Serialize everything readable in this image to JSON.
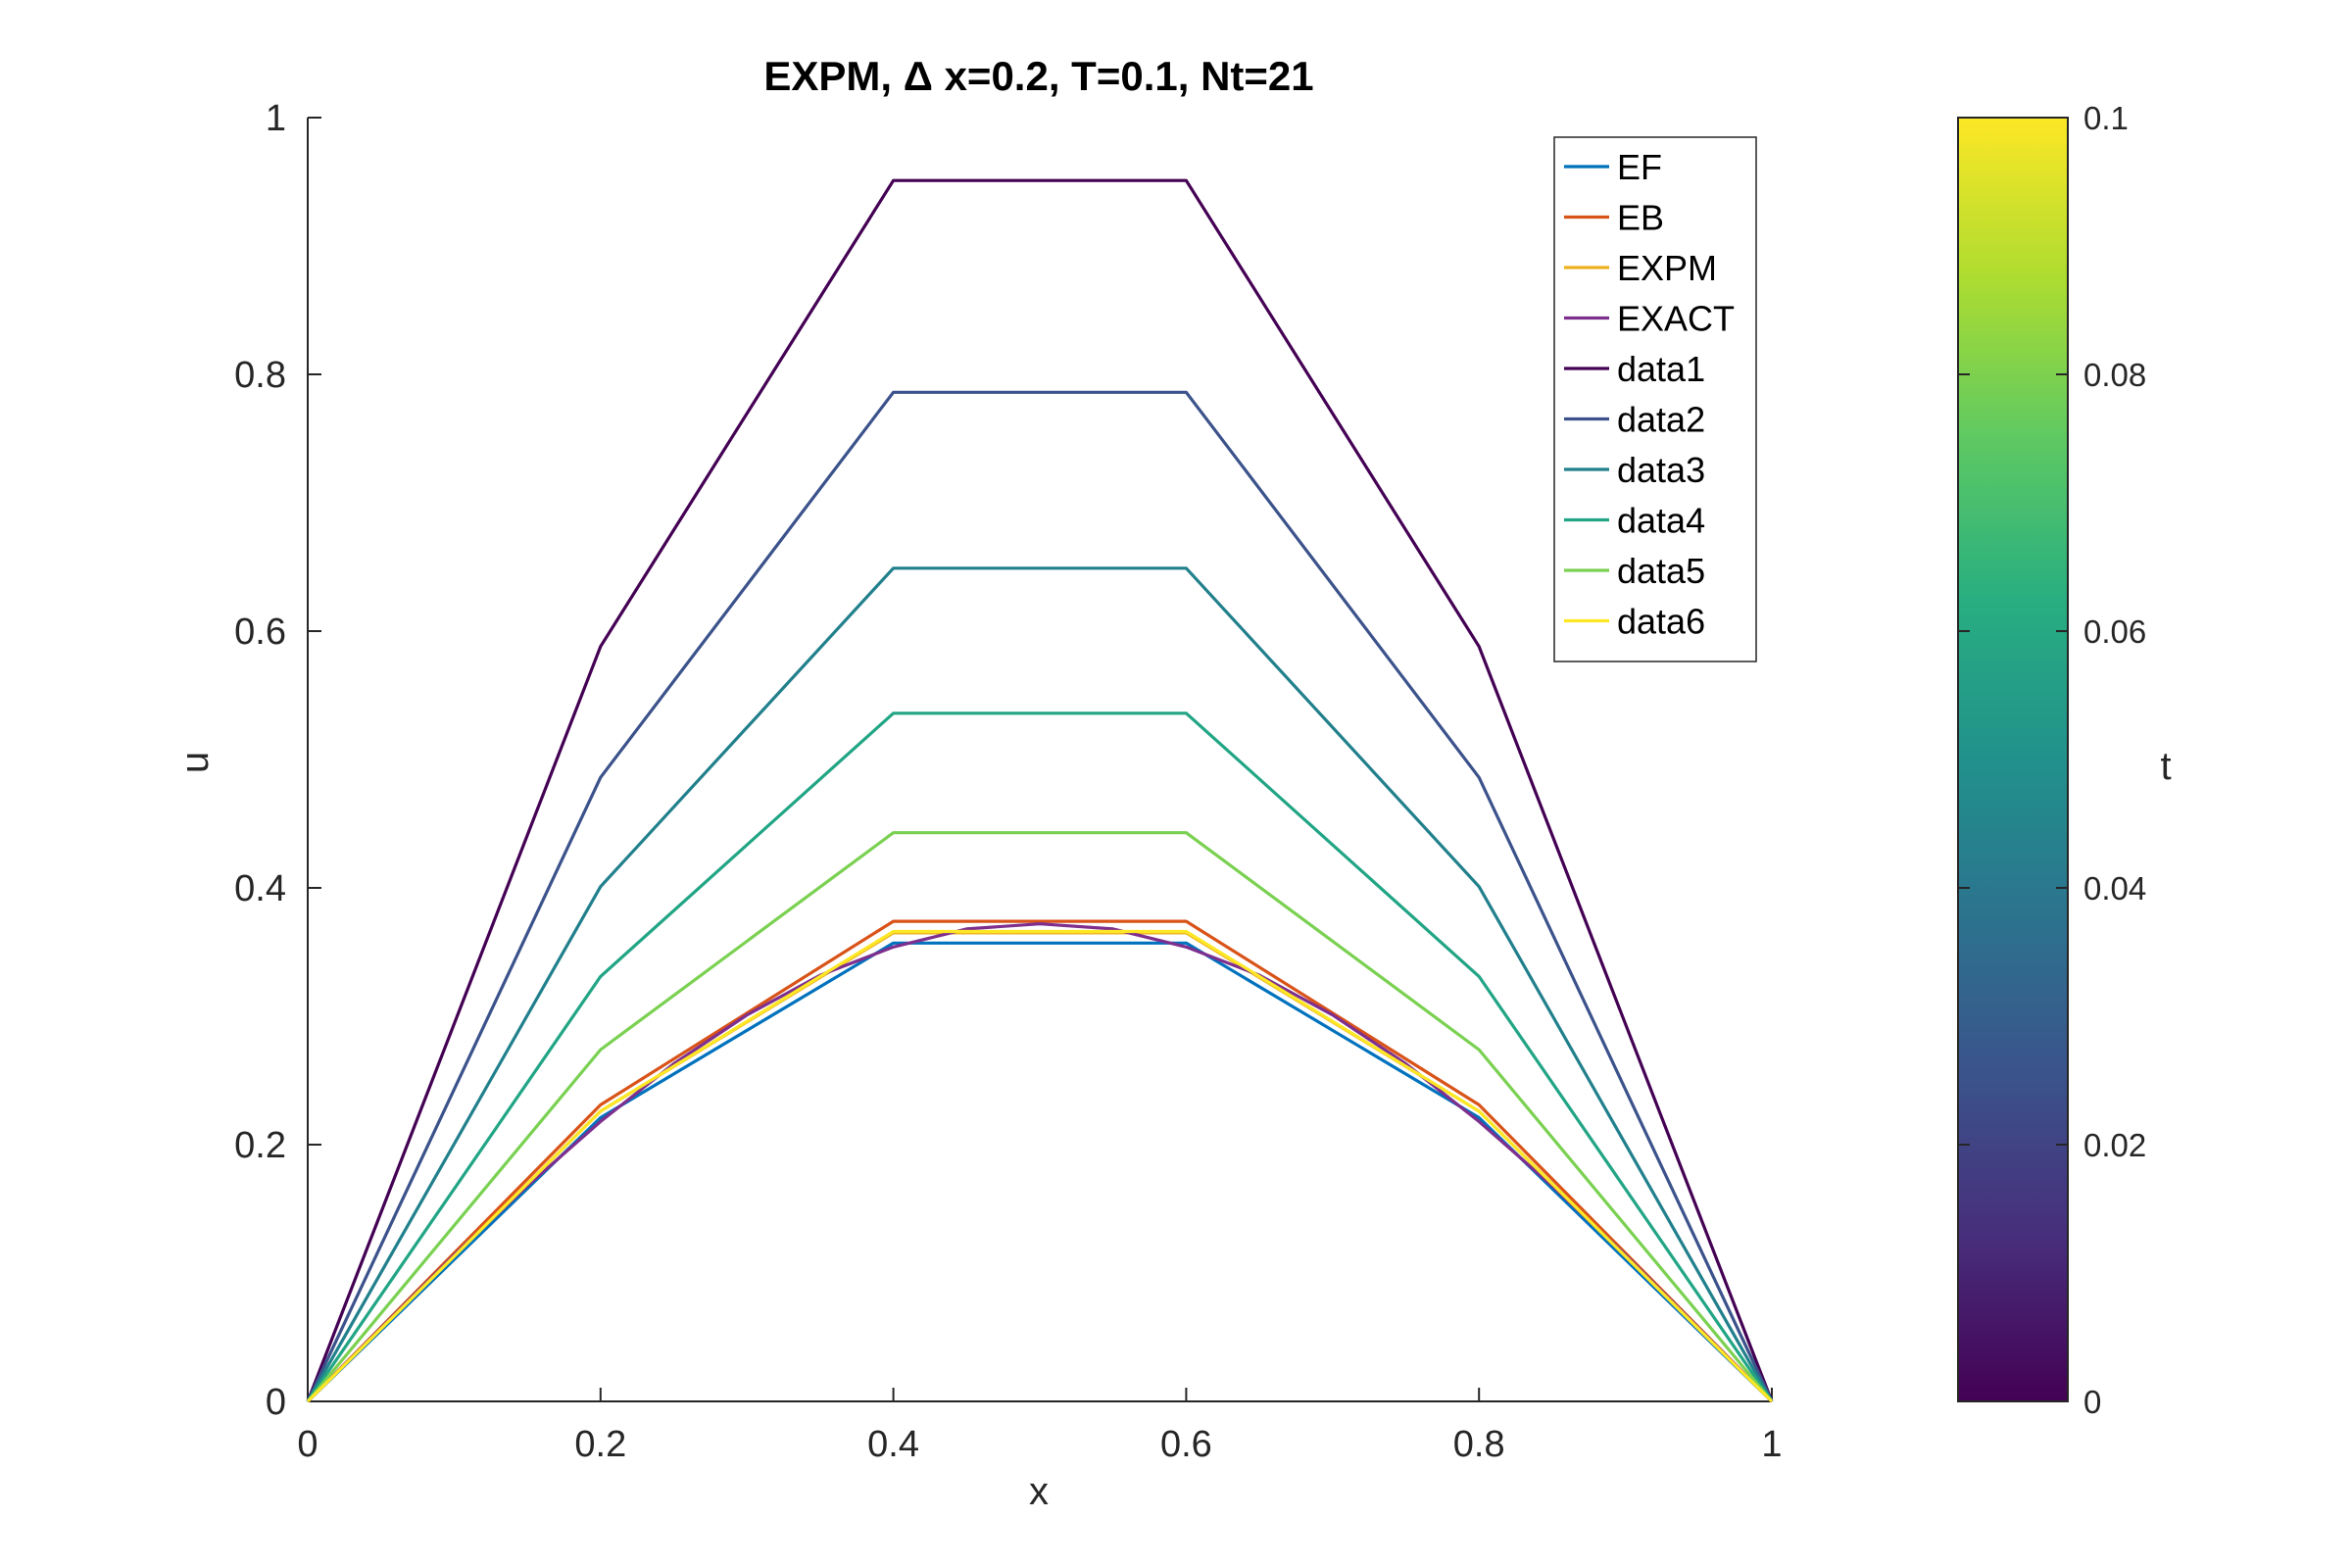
{
  "chart_data": {
    "type": "line",
    "title": "EXPM, Δ x=0.2, T=0.1, Nt=21",
    "xlabel": "x",
    "ylabel": "u",
    "xlim": [
      0,
      1
    ],
    "ylim": [
      0,
      1
    ],
    "xticks": [
      "0",
      "0.2",
      "0.4",
      "0.6",
      "0.8",
      "1"
    ],
    "yticks": [
      "0",
      "0.2",
      "0.4",
      "0.6",
      "0.8",
      "1"
    ],
    "grid": false,
    "legend_position": "top-right",
    "series": [
      {
        "name": "EF",
        "color": "#0072BD",
        "x": [
          0,
          0.2,
          0.4,
          0.6,
          0.8,
          1
        ],
        "y": [
          0,
          0.221,
          0.357,
          0.357,
          0.221,
          0
        ]
      },
      {
        "name": "EB",
        "color": "#D95319",
        "x": [
          0,
          0.2,
          0.4,
          0.6,
          0.8,
          1
        ],
        "y": [
          0,
          0.231,
          0.374,
          0.374,
          0.231,
          0
        ]
      },
      {
        "name": "EXPM",
        "color": "#EDB120",
        "x": [
          0,
          0.2,
          0.4,
          0.6,
          0.8,
          1
        ],
        "y": [
          0,
          0.226,
          0.365,
          0.365,
          0.226,
          0
        ]
      },
      {
        "name": "EXACT",
        "color": "#7E2F8E",
        "x": [
          0,
          0.05,
          0.1,
          0.15,
          0.2,
          0.25,
          0.3,
          0.35,
          0.4,
          0.45,
          0.5,
          0.55,
          0.6,
          0.65,
          0.7,
          0.75,
          0.8,
          0.85,
          0.9,
          0.95,
          1
        ],
        "y": [
          0,
          0.057,
          0.114,
          0.168,
          0.218,
          0.263,
          0.301,
          0.332,
          0.354,
          0.368,
          0.372,
          0.368,
          0.354,
          0.332,
          0.301,
          0.263,
          0.218,
          0.168,
          0.114,
          0.057,
          0
        ]
      },
      {
        "name": "data1",
        "color": "#440154",
        "x": [
          0,
          0.2,
          0.4,
          0.6,
          0.8,
          1
        ],
        "y": [
          0,
          0.588,
          0.951,
          0.951,
          0.588,
          0
        ]
      },
      {
        "name": "data2",
        "color": "#3B528B",
        "x": [
          0,
          0.2,
          0.4,
          0.6,
          0.8,
          1
        ],
        "y": [
          0,
          0.486,
          0.786,
          0.786,
          0.486,
          0
        ]
      },
      {
        "name": "data3",
        "color": "#21808C",
        "x": [
          0,
          0.2,
          0.4,
          0.6,
          0.8,
          1
        ],
        "y": [
          0,
          0.401,
          0.649,
          0.649,
          0.401,
          0
        ]
      },
      {
        "name": "data4",
        "color": "#21A585",
        "x": [
          0,
          0.2,
          0.4,
          0.6,
          0.8,
          1
        ],
        "y": [
          0,
          0.331,
          0.536,
          0.536,
          0.331,
          0
        ]
      },
      {
        "name": "data5",
        "color": "#7AD151",
        "x": [
          0,
          0.2,
          0.4,
          0.6,
          0.8,
          1
        ],
        "y": [
          0,
          0.274,
          0.443,
          0.443,
          0.274,
          0
        ]
      },
      {
        "name": "data6",
        "color": "#FDE725",
        "x": [
          0,
          0.2,
          0.4,
          0.6,
          0.8,
          1
        ],
        "y": [
          0,
          0.226,
          0.366,
          0.366,
          0.226,
          0
        ]
      }
    ],
    "colorbar": {
      "label": "t",
      "range": [
        0,
        0.1
      ],
      "ticks": [
        "0",
        "0.02",
        "0.04",
        "0.06",
        "0.08",
        "0.1"
      ],
      "colormap": [
        "#440154",
        "#472D7B",
        "#3B528B",
        "#2C728E",
        "#21918C",
        "#28AE80",
        "#5EC962",
        "#ADDC30",
        "#FDE725"
      ]
    }
  }
}
